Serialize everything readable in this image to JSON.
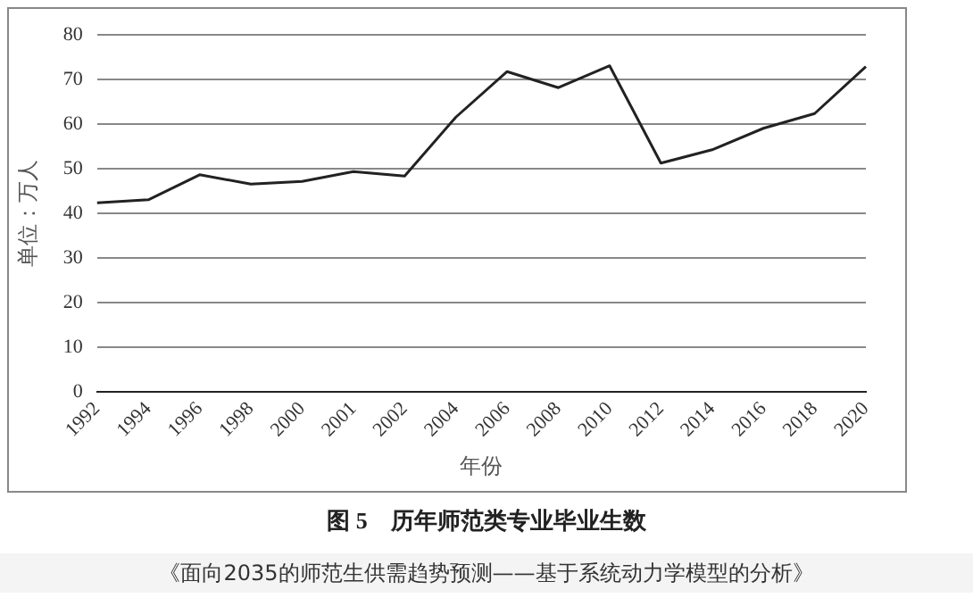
{
  "chart_data": {
    "type": "line",
    "title": "图 5　历年师范类专业毕业生数",
    "xlabel": "年份",
    "ylabel": "单位：万人",
    "categories": [
      "1992",
      "1994",
      "1996",
      "1998",
      "2000",
      "2001",
      "2002",
      "2004",
      "2006",
      "2008",
      "2010",
      "2012",
      "2014",
      "2016",
      "2018",
      "2020"
    ],
    "series": [
      {
        "color": "#222222",
        "values": [
          42.4,
          43.1,
          48.7,
          46.6,
          47.2,
          49.4,
          48.4,
          61.6,
          71.8,
          68.2,
          73.1,
          51.3,
          54.3,
          59.1,
          62.4,
          72.9
        ]
      }
    ],
    "ylim": [
      0,
      80
    ],
    "yticks": [
      0,
      10,
      20,
      30,
      40,
      50,
      60,
      70,
      80
    ],
    "grid": "y",
    "legend": false,
    "marker": "none",
    "line_style": "solid",
    "annotations": [
      "《面向2035的师范生供需趋势预测——基于系统动力学模型的分析》"
    ]
  }
}
